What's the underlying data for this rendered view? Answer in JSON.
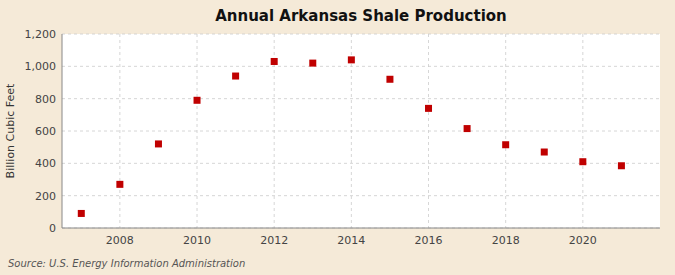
{
  "chart_data": {
    "type": "scatter",
    "title": "Annual Arkansas Shale Production",
    "y_label": "Billion Cubic Feet",
    "annotations": [
      "Source: U.S. Energy Information Administration"
    ],
    "x": [
      2007,
      2008,
      2009,
      2010,
      2011,
      2012,
      2013,
      2014,
      2015,
      2016,
      2017,
      2018,
      2019,
      2020,
      2021
    ],
    "values": [
      90,
      270,
      520,
      790,
      940,
      1030,
      1020,
      1040,
      920,
      740,
      615,
      515,
      470,
      410,
      385
    ],
    "color": "#c00000",
    "marker": "square",
    "xlim": [
      2006.5,
      2022.0
    ],
    "xticks": [
      2008,
      2010,
      2012,
      2014,
      2016,
      2018,
      2020
    ],
    "ylim": [
      0,
      1200
    ],
    "yticks": [
      0,
      200,
      400,
      600,
      800,
      {
        "value": 1000,
        "label": "1,000"
      },
      {
        "value": 1200,
        "label": "1,200"
      }
    ],
    "grid": true
  }
}
